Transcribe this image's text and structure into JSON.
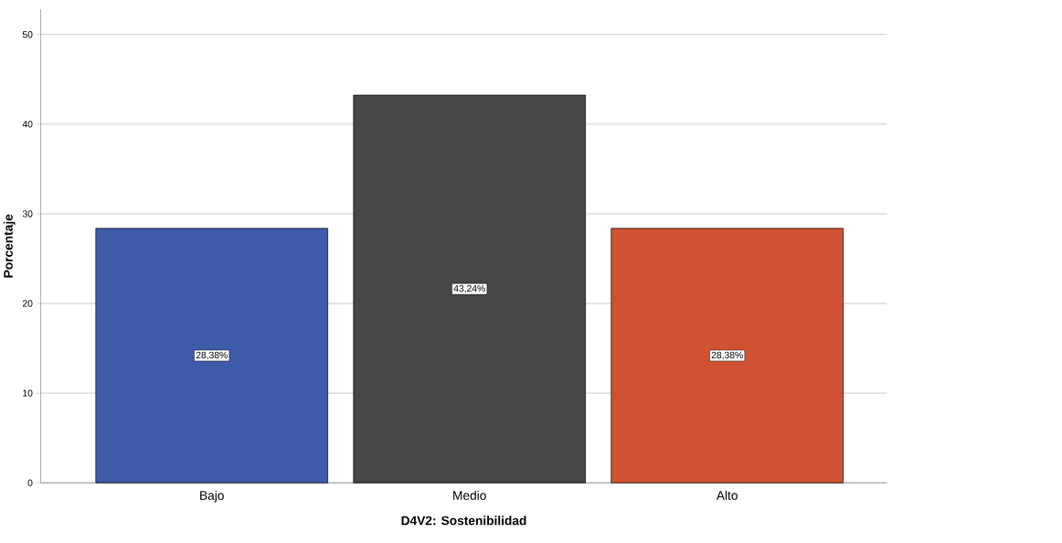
{
  "chart_data": {
    "type": "bar",
    "xlabel": "D4V2: Sostenibilidad",
    "ylabel": "Porcentaje",
    "categories": [
      "Bajo",
      "Medio",
      "Alto"
    ],
    "values": [
      28.38,
      43.24,
      28.38
    ],
    "value_labels": [
      "28,38%",
      "43,24%",
      "28,38%"
    ],
    "colors": [
      "#3e5ba9",
      "#464646",
      "#d05233"
    ],
    "ylim": [
      0,
      52.8
    ],
    "yticks": [
      0,
      10,
      20,
      30,
      40,
      50
    ],
    "grid": "y"
  }
}
